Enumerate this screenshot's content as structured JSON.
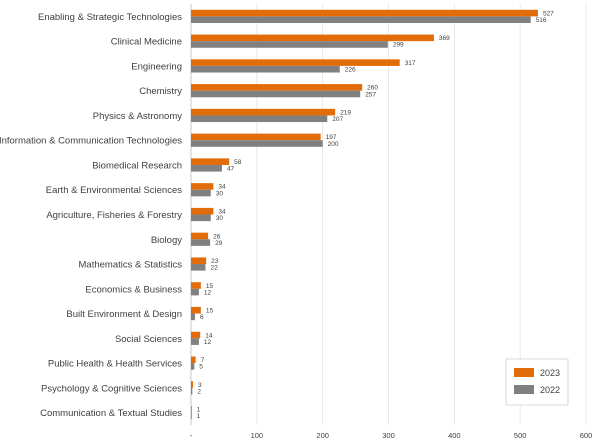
{
  "chart_data": {
    "type": "bar",
    "orientation": "horizontal",
    "categories": [
      "Enabling & Strategic Technologies",
      "Clinical Medicine",
      "Engineering",
      "Chemistry",
      "Physics & Astronomy",
      "Information & Communication Technologies",
      "Biomedical Research",
      "Earth & Environmental Sciences",
      "Agriculture, Fisheries & Forestry",
      "Biology",
      "Mathematics & Statistics",
      "Economics & Business",
      "Built Environment & Design",
      "Social Sciences",
      "Public Health & Health Services",
      "Psychology & Cognitive Sciences",
      "Communication & Textual Studies"
    ],
    "series": [
      {
        "name": "2023",
        "color": "#E36C0A",
        "values": [
          527,
          369,
          317,
          260,
          219,
          197,
          58,
          34,
          34,
          26,
          23,
          15,
          15,
          14,
          7,
          3,
          1
        ]
      },
      {
        "name": "2022",
        "color": "#808080",
        "values": [
          516,
          299,
          226,
          257,
          207,
          200,
          47,
          30,
          30,
          29,
          22,
          12,
          6,
          12,
          5,
          2,
          1
        ]
      }
    ],
    "xticks": [
      "-",
      "100",
      "200",
      "300",
      "400",
      "500",
      "600"
    ],
    "xlim": [
      0,
      600
    ],
    "grid": true,
    "legend_position": "bottom-right",
    "title": "",
    "xlabel": "",
    "ylabel": ""
  }
}
